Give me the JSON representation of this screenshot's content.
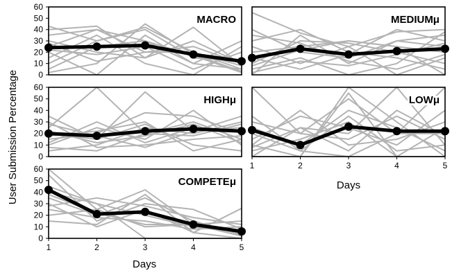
{
  "chart_data": {
    "type": "line",
    "ylabel": "User Submission Percentage",
    "xlabel": "Days",
    "x": [
      1,
      2,
      3,
      4,
      5
    ],
    "ylim": [
      0,
      60
    ],
    "yticks": [
      0,
      10,
      20,
      30,
      40,
      50,
      60
    ],
    "grid": false,
    "colors": {
      "average": "#000000",
      "individual": "#b3b3b3"
    },
    "panels": [
      {
        "key": "macro",
        "title": "MACRO",
        "average": [
          24,
          25,
          26,
          18,
          12
        ],
        "individual": [
          [
            43,
            30,
            42,
            20,
            5
          ],
          [
            35,
            40,
            30,
            17,
            2
          ],
          [
            30,
            20,
            15,
            42,
            8
          ],
          [
            25,
            40,
            20,
            25,
            10
          ],
          [
            20,
            0,
            35,
            10,
            30
          ],
          [
            15,
            35,
            10,
            0,
            25
          ],
          [
            28,
            12,
            20,
            20,
            8
          ],
          [
            10,
            30,
            40,
            15,
            12
          ],
          [
            5,
            25,
            30,
            10,
            5
          ],
          [
            40,
            43,
            15,
            30,
            10
          ],
          [
            22,
            18,
            25,
            5,
            20
          ],
          [
            2,
            10,
            45,
            18,
            3
          ]
        ]
      },
      {
        "key": "medium",
        "title": "MEDIUMμ",
        "average": [
          15,
          23,
          18,
          21,
          23
        ],
        "individual": [
          [
            55,
            37,
            25,
            38,
            40
          ],
          [
            40,
            20,
            15,
            30,
            35
          ],
          [
            20,
            25,
            30,
            25,
            20
          ],
          [
            10,
            30,
            28,
            20,
            10
          ],
          [
            5,
            15,
            0,
            10,
            38
          ],
          [
            0,
            35,
            10,
            30,
            25
          ],
          [
            25,
            10,
            25,
            0,
            15
          ],
          [
            30,
            40,
            20,
            15,
            5
          ],
          [
            15,
            5,
            18,
            40,
            30
          ],
          [
            8,
            22,
            30,
            25,
            0
          ],
          [
            2,
            12,
            8,
            18,
            28
          ],
          [
            35,
            28,
            12,
            5,
            18
          ]
        ]
      },
      {
        "key": "high",
        "title": "HIGHμ",
        "average": [
          20,
          18,
          22,
          24,
          22
        ],
        "individual": [
          [
            35,
            15,
            56,
            22,
            25
          ],
          [
            25,
            60,
            20,
            30,
            15
          ],
          [
            15,
            20,
            38,
            35,
            20
          ],
          [
            10,
            25,
            15,
            40,
            10
          ],
          [
            5,
            10,
            25,
            20,
            30
          ],
          [
            30,
            8,
            10,
            15,
            18
          ],
          [
            20,
            15,
            28,
            10,
            5
          ],
          [
            12,
            30,
            12,
            25,
            22
          ],
          [
            8,
            5,
            20,
            18,
            28
          ],
          [
            18,
            22,
            30,
            5,
            15
          ],
          [
            22,
            12,
            18,
            28,
            12
          ],
          [
            28,
            18,
            8,
            22,
            35
          ]
        ]
      },
      {
        "key": "low",
        "title": "LOWμ",
        "average": [
          23,
          10,
          26,
          22,
          22
        ],
        "individual": [
          [
            60,
            20,
            50,
            20,
            20
          ],
          [
            10,
            0,
            60,
            30,
            0
          ],
          [
            0,
            25,
            20,
            60,
            10
          ],
          [
            5,
            15,
            30,
            0,
            25
          ],
          [
            20,
            5,
            0,
            20,
            60
          ],
          [
            15,
            35,
            25,
            10,
            40
          ],
          [
            25,
            10,
            40,
            25,
            5
          ],
          [
            30,
            20,
            15,
            35,
            15
          ],
          [
            0,
            0,
            55,
            0,
            0
          ],
          [
            10,
            40,
            10,
            15,
            30
          ],
          [
            35,
            5,
            35,
            5,
            10
          ],
          [
            8,
            25,
            5,
            40,
            18
          ]
        ]
      },
      {
        "key": "compete",
        "title": "COMPETEμ",
        "average": [
          42,
          21,
          23,
          12,
          6
        ],
        "individual": [
          [
            60,
            25,
            42,
            12,
            2
          ],
          [
            55,
            15,
            30,
            25,
            8
          ],
          [
            40,
            30,
            20,
            10,
            5
          ],
          [
            35,
            20,
            35,
            15,
            3
          ],
          [
            30,
            10,
            25,
            5,
            0
          ],
          [
            25,
            18,
            15,
            8,
            10
          ],
          [
            20,
            25,
            10,
            12,
            15
          ],
          [
            15,
            12,
            38,
            5,
            26
          ],
          [
            45,
            30,
            0,
            0,
            0
          ],
          [
            28,
            35,
            28,
            18,
            12
          ],
          [
            38,
            22,
            12,
            12,
            4
          ]
        ]
      }
    ]
  }
}
